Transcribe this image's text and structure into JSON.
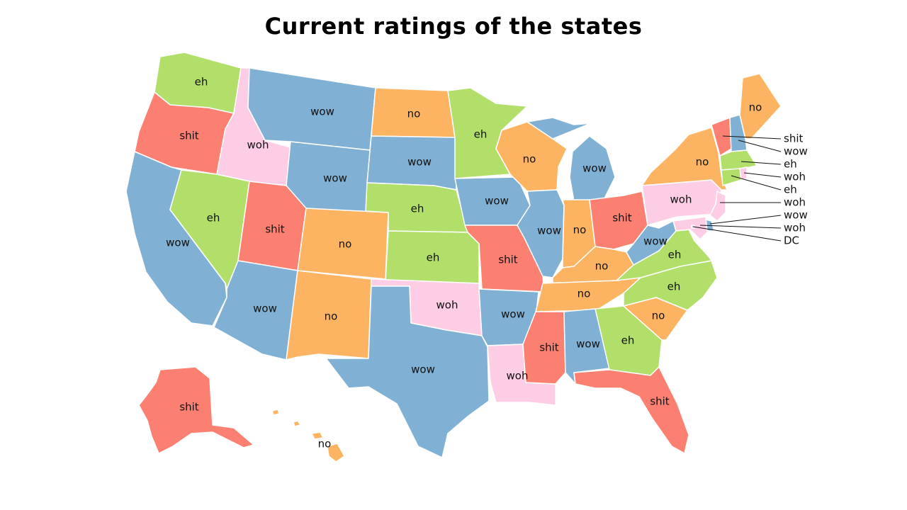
{
  "title": "Current ratings of the states",
  "colors": {
    "wow": "#80b0d3",
    "eh": "#b2df6a",
    "no": "#fdb462",
    "shit": "#fb8072",
    "woh": "#fccde5"
  },
  "states": [
    {
      "name": "Washington",
      "rating": "eh"
    },
    {
      "name": "Oregon",
      "rating": "shit"
    },
    {
      "name": "California",
      "rating": "wow"
    },
    {
      "name": "Idaho",
      "rating": "woh"
    },
    {
      "name": "Nevada",
      "rating": "eh"
    },
    {
      "name": "Montana",
      "rating": "wow"
    },
    {
      "name": "Wyoming",
      "rating": "wow"
    },
    {
      "name": "Utah",
      "rating": "shit"
    },
    {
      "name": "Arizona",
      "rating": "wow"
    },
    {
      "name": "Colorado",
      "rating": "no"
    },
    {
      "name": "New Mexico",
      "rating": "no"
    },
    {
      "name": "North Dakota",
      "rating": "no"
    },
    {
      "name": "South Dakota",
      "rating": "wow"
    },
    {
      "name": "Nebraska",
      "rating": "eh"
    },
    {
      "name": "Kansas",
      "rating": "eh"
    },
    {
      "name": "Oklahoma",
      "rating": "woh"
    },
    {
      "name": "Texas",
      "rating": "wow"
    },
    {
      "name": "Minnesota",
      "rating": "eh"
    },
    {
      "name": "Iowa",
      "rating": "wow"
    },
    {
      "name": "Missouri",
      "rating": "shit"
    },
    {
      "name": "Arkansas",
      "rating": "wow"
    },
    {
      "name": "Louisiana",
      "rating": "woh"
    },
    {
      "name": "Wisconsin",
      "rating": "no"
    },
    {
      "name": "Illinois",
      "rating": "wow"
    },
    {
      "name": "Michigan",
      "rating": "wow"
    },
    {
      "name": "Indiana",
      "rating": "no"
    },
    {
      "name": "Ohio",
      "rating": "shit"
    },
    {
      "name": "Kentucky",
      "rating": "no"
    },
    {
      "name": "Tennessee",
      "rating": "no"
    },
    {
      "name": "Mississippi",
      "rating": "shit"
    },
    {
      "name": "Alabama",
      "rating": "wow"
    },
    {
      "name": "Georgia",
      "rating": "eh"
    },
    {
      "name": "Florida",
      "rating": "shit"
    },
    {
      "name": "South Carolina",
      "rating": "no"
    },
    {
      "name": "North Carolina",
      "rating": "eh"
    },
    {
      "name": "Virginia",
      "rating": "eh"
    },
    {
      "name": "West Virginia",
      "rating": "wow"
    },
    {
      "name": "Pennsylvania",
      "rating": "woh"
    },
    {
      "name": "New York",
      "rating": "no"
    },
    {
      "name": "Maine",
      "rating": "no"
    },
    {
      "name": "Alaska",
      "rating": "shit"
    },
    {
      "name": "Hawaii",
      "rating": "no"
    },
    {
      "name": "Vermont",
      "rating": "shit"
    },
    {
      "name": "New Hampshire",
      "rating": "wow"
    },
    {
      "name": "Massachusetts",
      "rating": "eh"
    },
    {
      "name": "Rhode Island",
      "rating": "woh"
    },
    {
      "name": "Connecticut",
      "rating": "eh"
    },
    {
      "name": "New Jersey",
      "rating": "woh"
    },
    {
      "name": "Delaware",
      "rating": "wow"
    },
    {
      "name": "Maryland",
      "rating": "woh"
    },
    {
      "name": "District of Columbia",
      "rating": "DC"
    }
  ]
}
